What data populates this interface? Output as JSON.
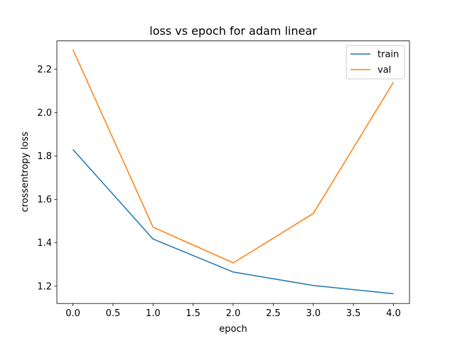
{
  "chart_data": {
    "type": "line",
    "title": "loss vs epoch for adam linear",
    "xlabel": "epoch",
    "ylabel": "crossentropy loss",
    "x": [
      0,
      1,
      2,
      3,
      4
    ],
    "xlim": [
      -0.2,
      4.2
    ],
    "ylim": [
      1.12,
      2.33
    ],
    "xticks": [
      "0.0",
      "0.5",
      "1.0",
      "1.5",
      "2.0",
      "2.5",
      "3.0",
      "3.5",
      "4.0"
    ],
    "yticks": [
      "1.2",
      "1.4",
      "1.6",
      "1.8",
      "2.0",
      "2.2"
    ],
    "grid": false,
    "legend_position": "top-right",
    "series": [
      {
        "name": "train",
        "color": "#1f77b4",
        "values": [
          1.83,
          1.417,
          1.265,
          1.203,
          1.165
        ]
      },
      {
        "name": "val",
        "color": "#ff7f0e",
        "values": [
          2.29,
          1.472,
          1.307,
          1.535,
          2.14
        ]
      }
    ]
  }
}
